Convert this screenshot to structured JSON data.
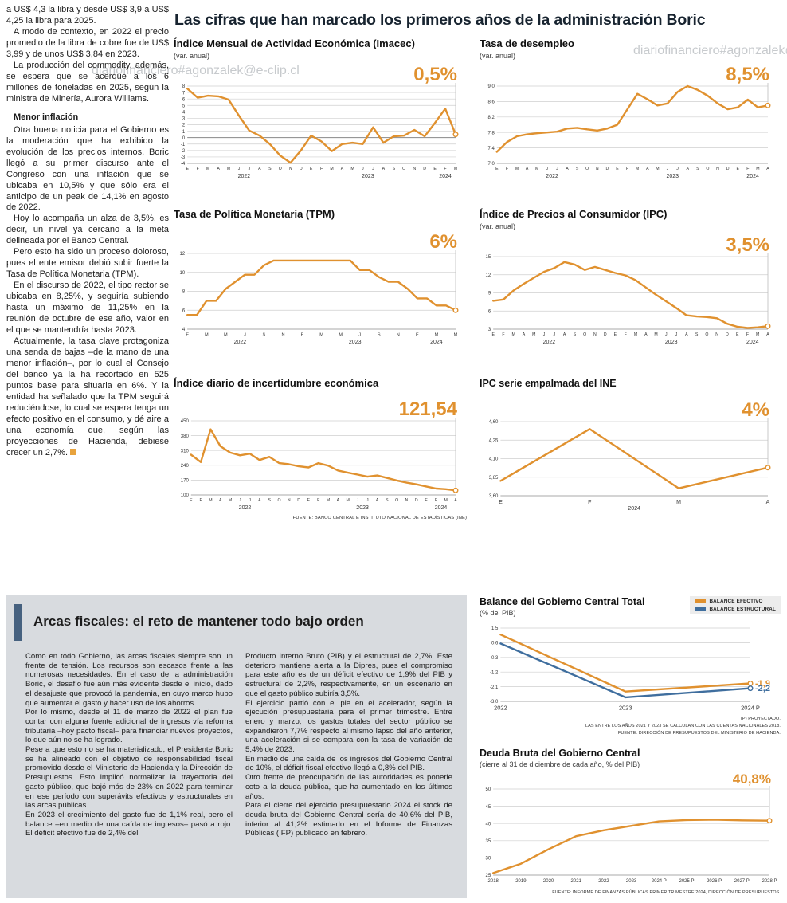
{
  "headline": "Las cifras que han marcado los primeros años de la administración Boric",
  "watermarks": [
    "diariofinanciero#agonzalek@e-clip.cl",
    "diariofinanciero#agonzalek@e-clip.cl",
    "diariofinanciero#agonzalek@e-clip.cl"
  ],
  "left_column": {
    "paragraphs": [
      "a US$ 4,3 la libra y desde US$ 3,9 a US$ 4,25 la libra para 2025.",
      "A modo de contexto, en 2022 el precio promedio de la libra de cobre fue de US$ 3,99 y de unos US$ 3,84 en 2023.",
      "La producción del commodity, además, se espera que se acerque a los 6 millones de toneladas en 2025, según la ministra de Minería, Aurora Williams."
    ],
    "subhead": "Menor inflación",
    "paragraphs2": [
      "Otra buena noticia para el Gobierno es la moderación que ha exhibido la evolución de los precios internos. Boric llegó a su primer discurso ante el Congreso con una inflación que se ubicaba en 10,5% y que sólo era el anticipo de un peak de 14,1% en agosto de 2022.",
      "Hoy lo acompaña un alza de 3,5%, es decir, un nivel ya cercano a la meta delineada por el Banco Central.",
      "Pero esto ha sido un proceso doloroso, pues el ente emisor debió subir fuerte la Tasa de Política Monetaria (TPM).",
      "En el discurso de 2022, el tipo rector se ubicaba en 8,25%, y seguiría subiendo hasta un máximo de 11,25% en la reunión de octubre de ese año, valor en el que se mantendría hasta 2023.",
      "Actualmente, la tasa clave protagoniza una senda de bajas –de la mano de una menor inflación–, por lo cual el Consejo del banco ya la ha recortado en 525 puntos base para situarla en 6%. Y la entidad ha señalado que la TPM seguirá reduciéndose, lo cual se espera tenga un efecto positivo en el consumo, y dé aire a una economía que, según las proyecciones de Hacienda, debiese crecer un 2,7%."
    ]
  },
  "fiscal": {
    "title": "Arcas fiscales: el reto de mantener todo bajo orden",
    "col1": [
      "Como en todo Gobierno, las arcas fiscales siempre son un frente de tensión. Los recursos son escasos frente a las numerosas necesidades. En el caso de la administración Boric, el desafío fue aún más evidente desde el inicio, dado el desajuste que provocó la pandemia, en cuyo marco hubo que aumentar el gasto y hacer uso de los ahorros.",
      "Por lo mismo, desde el 11 de marzo de 2022 el plan fue contar con alguna fuente adicional de ingresos vía reforma tributaria –hoy pacto fiscal– para financiar nuevos proyectos, lo que aún no se ha logrado.",
      "Pese a que esto no se ha materializado, el Presidente Boric se ha alineado con el objetivo de responsabilidad fiscal promovido desde el Ministerio de Hacienda y la Dirección de Presupuestos. Esto implicó normalizar la trayectoria del gasto público, que bajó más de 23% en 2022 para terminar en ese período con superávits efectivos y estructurales en las arcas públicas.",
      "En 2023 el crecimiento del gasto fue de 1,1% real, pero el balance –en medio de una caída de ingresos– pasó a rojo. El déficit efectivo fue de 2,4% del"
    ],
    "col2": [
      "Producto Interno Bruto (PIB) y el estructural de 2,7%. Este deterioro mantiene alerta a la Dipres, pues el compromiso para este año es de un déficit efectivo de 1,9% del PIB y estructural de 2,2%, respectivamente, en un escenario en que el gasto público subiría 3,5%.",
      "El ejercicio partió con el pie en el acelerador, según la ejecución presupuestaria para el primer trimestre. Entre enero y marzo, los gastos totales del sector público se expandieron 7,7% respecto al mismo lapso del año anterior, una aceleración si se compara con la tasa de variación de 5,4% de 2023.",
      "En medio de una caída de los ingresos del Gobierno Central de 10%, el déficit fiscal efectivo llegó a 0,8% del PIB.",
      "Otro frente de preocupación de las autoridades es ponerle coto a la deuda pública, que ha aumentado en los últimos años.",
      "Para el cierre del ejercicio presupuestario 2024 el stock de deuda bruta del Gobierno Central sería de 40,6% del PIB, inferior al 41,2% estimado en el Informe de Finanzas Públicas (IFP) publicado en febrero."
    ]
  },
  "chart_data": [
    {
      "type": "line",
      "title": "Índice Mensual de Actividad Económica (Imacec)",
      "subtitle": "(var. anual)",
      "value_label": "0,5%",
      "ylim": [
        -4,
        8
      ],
      "zero_line": true,
      "x_size": 5.2,
      "y_ticks": [
        {
          "v": 8,
          "t": "8"
        },
        {
          "v": 7,
          "t": "7"
        },
        {
          "v": 6,
          "t": "6"
        },
        {
          "v": 5,
          "t": "5"
        },
        {
          "v": 4,
          "t": "4"
        },
        {
          "v": 3,
          "t": "3"
        },
        {
          "v": 2,
          "t": "2"
        },
        {
          "v": 1,
          "t": "1"
        },
        {
          "v": 0,
          "t": "0"
        },
        {
          "v": -1,
          "t": "-1"
        },
        {
          "v": -2,
          "t": "-2"
        },
        {
          "v": -3,
          "t": "-3"
        },
        {
          "v": -4,
          "t": "-4"
        }
      ],
      "x": [
        "E",
        "F",
        "M",
        "A",
        "M",
        "J",
        "J",
        "A",
        "S",
        "O",
        "N",
        "D",
        "E",
        "F",
        "M",
        "A",
        "M",
        "J",
        "J",
        "A",
        "S",
        "O",
        "N",
        "D",
        "E",
        "F",
        "M"
      ],
      "years": [
        {
          "t": "2022",
          "s": 0,
          "e": 11
        },
        {
          "t": "2023",
          "s": 12,
          "e": 23
        },
        {
          "t": "2024",
          "s": 24,
          "e": 26
        }
      ],
      "series": [
        {
          "name": "Imacec",
          "color": "#e0912f",
          "values": [
            7.6,
            6.2,
            6.5,
            6.4,
            5.9,
            3.4,
            1.1,
            0.3,
            -1.0,
            -2.8,
            -3.9,
            -2.0,
            0.3,
            -0.6,
            -2.1,
            -1.0,
            -0.8,
            -1.0,
            1.6,
            -0.8,
            0.2,
            0.3,
            1.2,
            0.2,
            2.3,
            4.5,
            0.5
          ]
        }
      ]
    },
    {
      "type": "line",
      "title": "Tasa de desempleo",
      "subtitle": "(var. anual)",
      "value_label": "8,5%",
      "ylim": [
        7.0,
        9.0
      ],
      "x_size": 5.2,
      "y_ticks": [
        {
          "v": 9.0,
          "t": "9,0"
        },
        {
          "v": 8.6,
          "t": "8,6"
        },
        {
          "v": 8.2,
          "t": "8,2"
        },
        {
          "v": 7.8,
          "t": "7,8"
        },
        {
          "v": 7.4,
          "t": "7,4"
        },
        {
          "v": 7.0,
          "t": "7,0"
        }
      ],
      "x": [
        "E",
        "F",
        "M",
        "A",
        "M",
        "J",
        "J",
        "A",
        "S",
        "O",
        "N",
        "D",
        "E",
        "F",
        "M",
        "A",
        "M",
        "J",
        "J",
        "A",
        "S",
        "O",
        "N",
        "D",
        "E",
        "F",
        "M",
        "A"
      ],
      "years": [
        {
          "t": "2022",
          "s": 0,
          "e": 11
        },
        {
          "t": "2023",
          "s": 12,
          "e": 23
        },
        {
          "t": "2024",
          "s": 24,
          "e": 27
        }
      ],
      "series": [
        {
          "name": "Tasa de desempleo",
          "color": "#e0912f",
          "values": [
            7.3,
            7.55,
            7.7,
            7.75,
            7.78,
            7.8,
            7.82,
            7.9,
            7.92,
            7.88,
            7.85,
            7.9,
            8.0,
            8.4,
            8.8,
            8.66,
            8.5,
            8.55,
            8.85,
            9.0,
            8.9,
            8.75,
            8.55,
            8.4,
            8.45,
            8.65,
            8.45,
            8.5
          ]
        }
      ]
    },
    {
      "type": "line",
      "title": "Tasa de Política Monetaria (TPM)",
      "subtitle": "",
      "value_label": "6%",
      "ylim": [
        4,
        12
      ],
      "x_size": 5.6,
      "y_ticks": [
        {
          "v": 12,
          "t": "12"
        },
        {
          "v": 10,
          "t": "10"
        },
        {
          "v": 8,
          "t": "8"
        },
        {
          "v": 6,
          "t": "6"
        },
        {
          "v": 4,
          "t": "4"
        }
      ],
      "x": [
        "E",
        "",
        "M",
        "",
        "M",
        "",
        "J",
        "",
        "S",
        "",
        "N",
        "",
        "E",
        "",
        "M",
        "",
        "M",
        "",
        "J",
        "",
        "S",
        "",
        "N",
        "",
        "E",
        "",
        "M",
        "",
        "M"
      ],
      "years": [
        {
          "t": "2022",
          "s": 0,
          "e": 11
        },
        {
          "t": "2023",
          "s": 12,
          "e": 23
        },
        {
          "t": "2024",
          "s": 24,
          "e": 28
        }
      ],
      "series": [
        {
          "name": "TPM",
          "color": "#e0912f",
          "values": [
            5.5,
            5.5,
            7.0,
            7.0,
            8.25,
            9.0,
            9.75,
            9.75,
            10.75,
            11.25,
            11.25,
            11.25,
            11.25,
            11.25,
            11.25,
            11.25,
            11.25,
            11.25,
            10.25,
            10.25,
            9.5,
            9.0,
            9.0,
            8.25,
            7.25,
            7.25,
            6.5,
            6.5,
            6.0
          ]
        }
      ]
    },
    {
      "type": "line",
      "title": "Índice de Precios al Consumidor (IPC)",
      "subtitle": "(var. anual)",
      "value_label": "3,5%",
      "ylim": [
        3,
        15
      ],
      "x_size": 5.2,
      "y_ticks": [
        {
          "v": 15,
          "t": "15"
        },
        {
          "v": 12,
          "t": "12"
        },
        {
          "v": 9,
          "t": "9"
        },
        {
          "v": 6,
          "t": "6"
        },
        {
          "v": 3,
          "t": "3"
        }
      ],
      "x": [
        "E",
        "F",
        "M",
        "A",
        "M",
        "J",
        "J",
        "A",
        "S",
        "O",
        "N",
        "D",
        "E",
        "F",
        "M",
        "A",
        "M",
        "J",
        "J",
        "A",
        "S",
        "O",
        "N",
        "D",
        "E",
        "F",
        "M",
        "A"
      ],
      "years": [
        {
          "t": "2022",
          "s": 0,
          "e": 11
        },
        {
          "t": "2023",
          "s": 12,
          "e": 23
        },
        {
          "t": "2024",
          "s": 24,
          "e": 27
        }
      ],
      "series": [
        {
          "name": "IPC",
          "color": "#e0912f",
          "values": [
            7.7,
            7.9,
            9.4,
            10.5,
            11.5,
            12.5,
            13.1,
            14.1,
            13.7,
            12.8,
            13.3,
            12.8,
            12.3,
            11.9,
            11.1,
            9.9,
            8.7,
            7.6,
            6.5,
            5.3,
            5.1,
            5.0,
            4.8,
            3.9,
            3.4,
            3.2,
            3.3,
            3.5
          ]
        }
      ]
    },
    {
      "type": "line",
      "title": "Índice diario de incertidumbre económica",
      "subtitle": "",
      "value_label": "121,54",
      "ylim": [
        100,
        450
      ],
      "x_size": 5.2,
      "footnote": "FUENTE: BANCO CENTRAL E INSTITUTO NACIONAL DE ESTADÍSTICAS (INE)",
      "y_ticks": [
        {
          "v": 450,
          "t": "450"
        },
        {
          "v": 380,
          "t": "380"
        },
        {
          "v": 310,
          "t": "310"
        },
        {
          "v": 240,
          "t": "240"
        },
        {
          "v": 170,
          "t": "170"
        },
        {
          "v": 100,
          "t": "100"
        }
      ],
      "x": [
        "E",
        "F",
        "M",
        "A",
        "M",
        "J",
        "J",
        "A",
        "S",
        "O",
        "N",
        "D",
        "E",
        "F",
        "M",
        "A",
        "M",
        "J",
        "J",
        "A",
        "S",
        "O",
        "N",
        "D",
        "E",
        "F",
        "M",
        "A"
      ],
      "years": [
        {
          "t": "2022",
          "s": 0,
          "e": 11
        },
        {
          "t": "2023",
          "s": 12,
          "e": 23
        },
        {
          "t": "2024",
          "s": 24,
          "e": 27
        }
      ],
      "series": [
        {
          "name": "Incertidumbre económica",
          "color": "#e0912f",
          "values": [
            290,
            255,
            410,
            330,
            300,
            287,
            295,
            265,
            280,
            250,
            245,
            235,
            230,
            250,
            238,
            215,
            205,
            196,
            186,
            192,
            180,
            168,
            158,
            150,
            140,
            130,
            127,
            121.54
          ]
        }
      ]
    },
    {
      "type": "line",
      "title": "IPC serie empalmada del INE",
      "subtitle": "",
      "value_label": "4%",
      "ylim": [
        3.6,
        4.6
      ],
      "x_size": 7,
      "y_ticks": [
        {
          "v": 4.6,
          "t": "4,60"
        },
        {
          "v": 4.35,
          "t": "4,35"
        },
        {
          "v": 4.1,
          "t": "4,10"
        },
        {
          "v": 3.85,
          "t": "3,85"
        },
        {
          "v": 3.6,
          "t": "3,60"
        }
      ],
      "x": [
        "E",
        "F",
        "M",
        "A"
      ],
      "years": [
        {
          "t": "2024",
          "s": 0,
          "e": 3
        }
      ],
      "series": [
        {
          "name": "IPC empalmado",
          "color": "#e0912f",
          "values": [
            3.8,
            4.5,
            3.7,
            3.98
          ]
        }
      ]
    },
    {
      "type": "line",
      "title": "Balance del Gobierno Central Total",
      "subtitle": "(% del PIB)",
      "ylim": [
        -3.0,
        1.5
      ],
      "x_size": 7.5,
      "right_pad": 38,
      "legend_position": "top-right",
      "footnotes": [
        "(P) PROYECTADO.",
        "LAS ENTRE LOS AÑOS 2021 Y 2023 SE CALCULAN CON LAS CUENTAS NACIONALES 2018.",
        "FUENTE: DIRECCIÓN DE PRESUPUESTOS DEL MINISTERIO DE HACIENDA."
      ],
      "y_ticks": [
        {
          "v": 1.5,
          "t": "1,5"
        },
        {
          "v": 0.6,
          "t": "0,6"
        },
        {
          "v": -0.3,
          "t": "-0,3"
        },
        {
          "v": -1.2,
          "t": "-1,2"
        },
        {
          "v": -2.1,
          "t": "-2,1"
        },
        {
          "v": -3.0,
          "t": "-3,0"
        }
      ],
      "x": [
        "2022",
        "2023",
        "2024 P"
      ],
      "years": [],
      "series": [
        {
          "name": "BALANCE EFECTIVO",
          "color": "#e0912f",
          "values": [
            1.1,
            -2.4,
            -1.9
          ],
          "end_label": "-1,9"
        },
        {
          "name": "BALANCE ESTRUCTURAL",
          "color": "#3f6e9e",
          "values": [
            0.55,
            -2.75,
            -2.2
          ],
          "end_label": "-2,2"
        }
      ]
    },
    {
      "type": "line",
      "title": "Deuda Bruta del Gobierno Central",
      "subtitle": "(cierre al 31 de diciembre de cada año, % del PIB)",
      "value_label": "40,8%",
      "value_size": 17,
      "ylim": [
        25,
        50
      ],
      "x_size": 6,
      "footnote": "FUENTE: INFORME DE FINANZAS PÚBLICAS PRIMER TRIMESTRE 2024, DIRECCIÓN DE PRESUPUESTOS.",
      "y_ticks": [
        {
          "v": 50,
          "t": "50"
        },
        {
          "v": 45,
          "t": "45"
        },
        {
          "v": 40,
          "t": "40"
        },
        {
          "v": 35,
          "t": "35"
        },
        {
          "v": 30,
          "t": "30"
        },
        {
          "v": 25,
          "t": "25"
        }
      ],
      "x": [
        "2018",
        "2019",
        "2020",
        "2021",
        "2022",
        "2023",
        "2024 P",
        "2025 P",
        "2026 P",
        "2027 P",
        "2028 P"
      ],
      "years": [],
      "series": [
        {
          "name": "Deuda bruta",
          "color": "#e0912f",
          "values": [
            25.6,
            28.3,
            32.5,
            36.3,
            38.0,
            39.3,
            40.6,
            41.0,
            41.1,
            40.9,
            40.8
          ]
        }
      ]
    }
  ]
}
